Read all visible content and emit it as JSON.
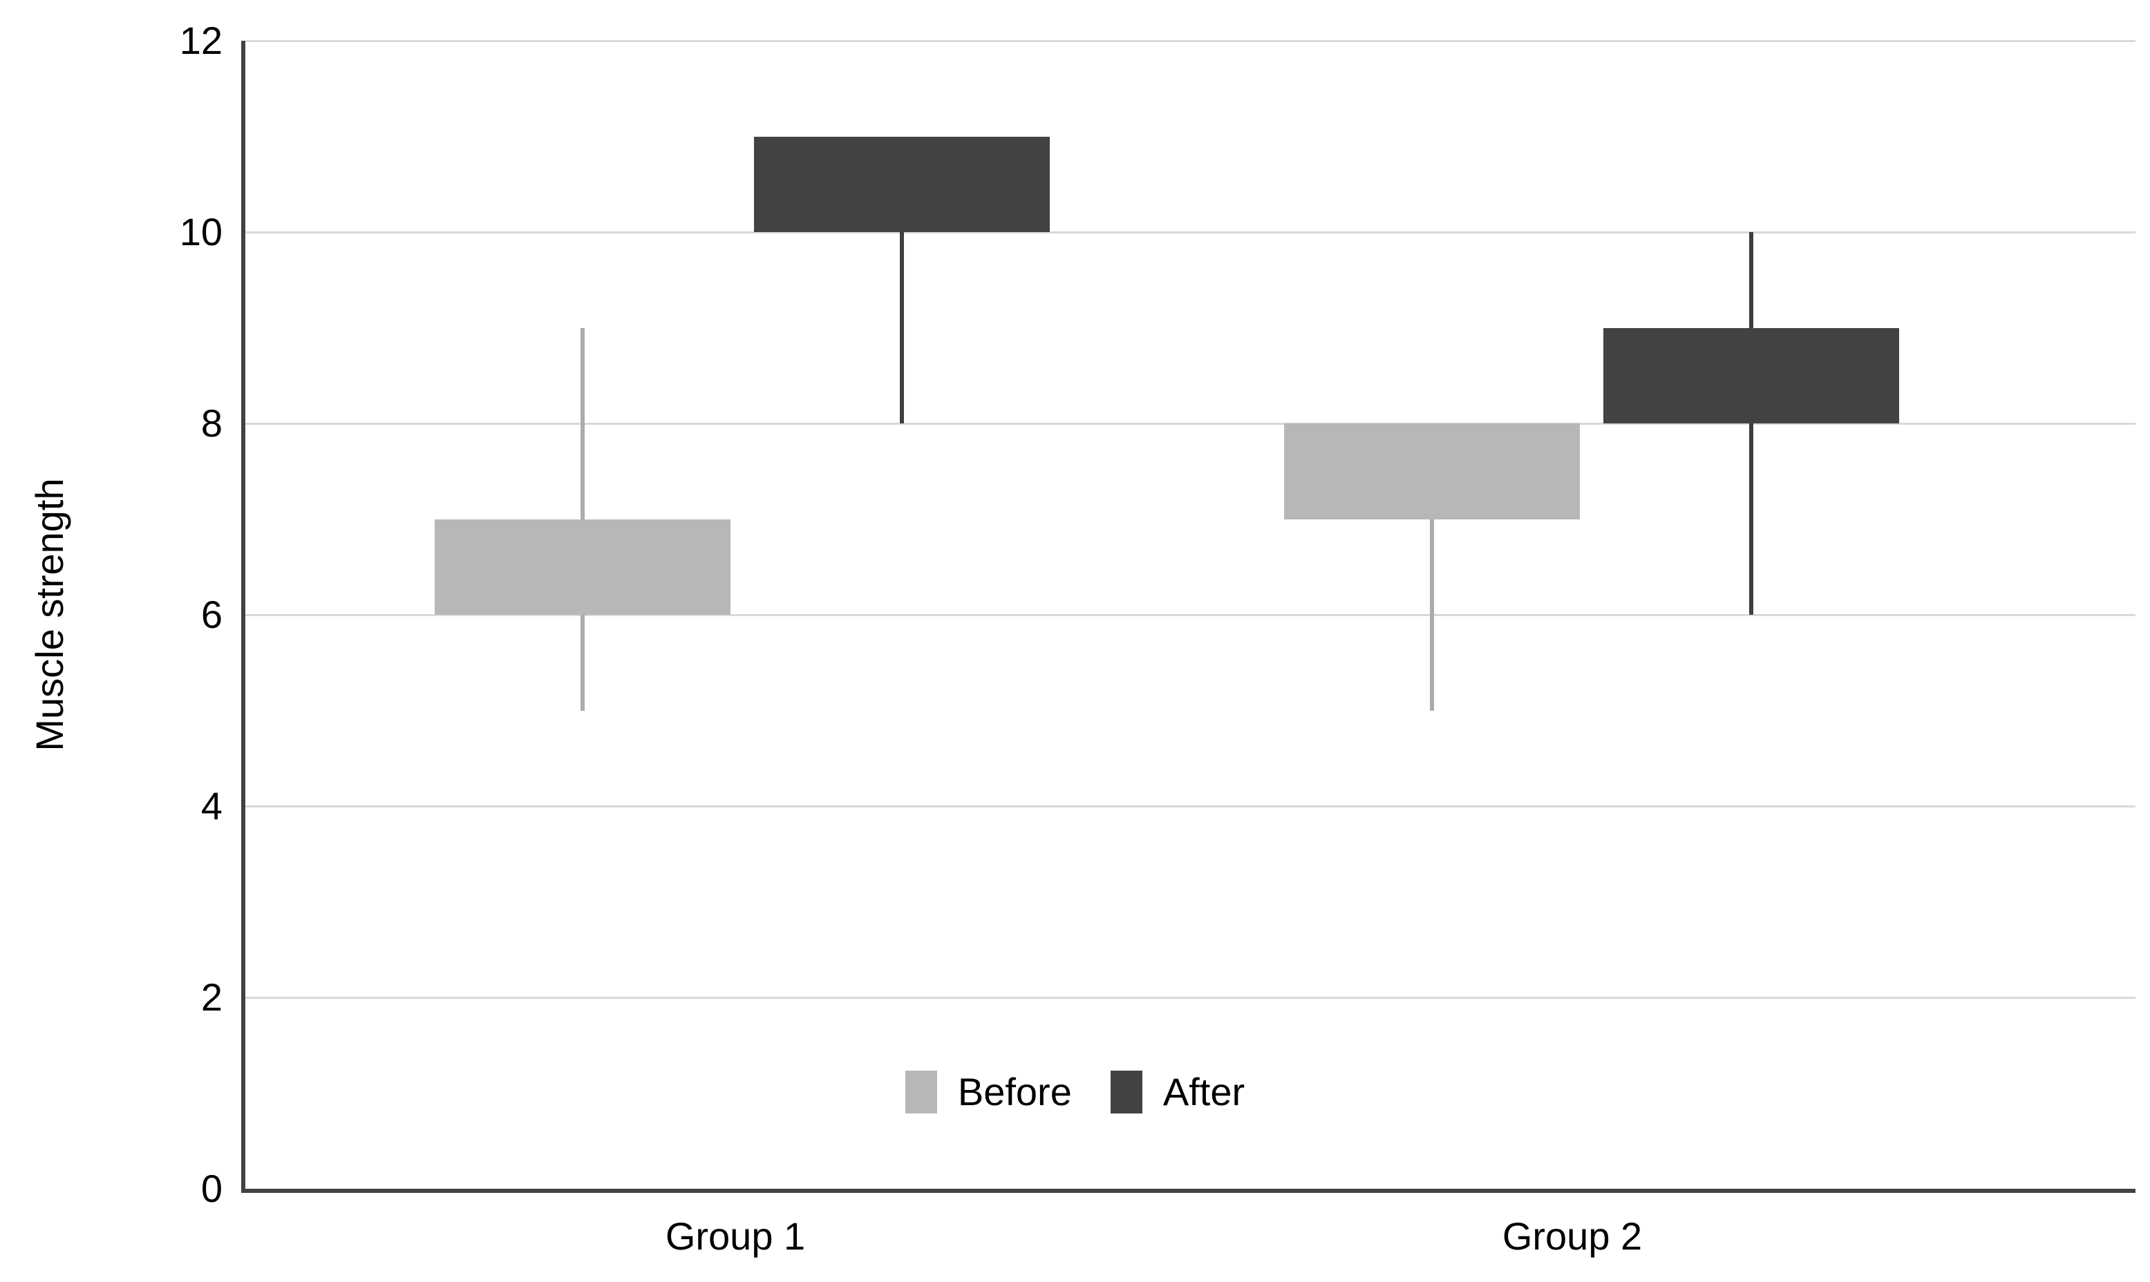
{
  "chart_data": {
    "type": "candlestick",
    "ylabel": "Muscle strength",
    "categories": [
      "Group 1",
      "Group 2"
    ],
    "y_ticks": [
      0,
      2,
      4,
      6,
      8,
      10,
      12
    ],
    "ylim": [
      0,
      12
    ],
    "grid": true,
    "legend_position": "bottom-center",
    "series": [
      {
        "name": "Before",
        "color": "#b7b7b7",
        "whisker_color": "#ababab",
        "values": [
          {
            "category": "Group 1",
            "low": 5,
            "open": 6,
            "close": 7,
            "high": 9
          },
          {
            "category": "Group 2",
            "low": 5,
            "open": 7,
            "close": 8,
            "high": 8
          }
        ]
      },
      {
        "name": "After",
        "color": "#424242",
        "whisker_color": "#3f3f3f",
        "values": [
          {
            "category": "Group 1",
            "low": 8,
            "open": 10,
            "close": 11,
            "high": 11
          },
          {
            "category": "Group 2",
            "low": 6,
            "open": 8,
            "close": 9,
            "high": 10
          }
        ]
      }
    ],
    "axis_color": "#424242",
    "gridline_color": "#d9d9d9",
    "text_color": "#000000"
  }
}
